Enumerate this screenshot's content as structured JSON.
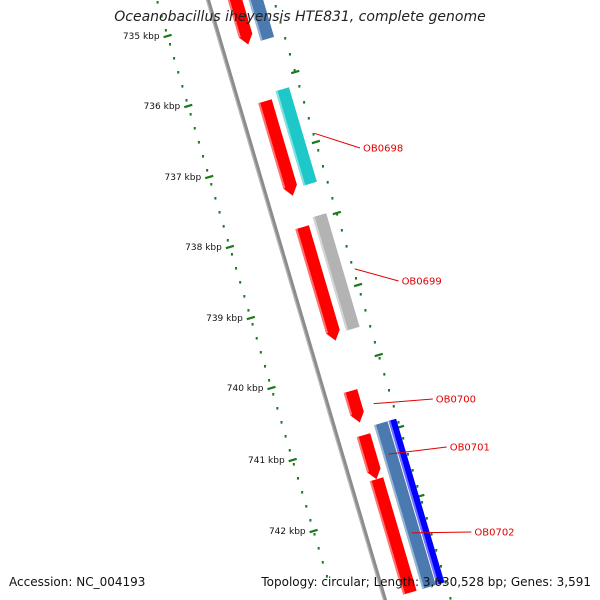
{
  "title": "Oceanobacillus iheyensis HTE831, complete genome",
  "footer": {
    "accession": "Accession: NC_004193",
    "stats": "Topology: circular; Length: 3,630,528 bp; Genes: 3,591"
  },
  "colors": {
    "tick_dots": "#1a7a1a",
    "backbone": "#8c8c8c",
    "forward_strand": "#ff0000",
    "label_color": "#e00000"
  },
  "ruler": {
    "ticks": [
      "735 kbp",
      "736 kbp",
      "737 kbp",
      "738 kbp",
      "739 kbp",
      "740 kbp",
      "741 kbp",
      "742 kbp"
    ]
  },
  "genes": [
    {
      "label": "",
      "strand": "+",
      "color": "#ff0000",
      "track": 1,
      "start": 0.0,
      "end": 0.13
    },
    {
      "label": "",
      "strand": "-",
      "color": "#4a7ab0",
      "track": 2,
      "start": 0.0,
      "end": 0.13
    },
    {
      "label": "",
      "strand": "+",
      "color": "#ff0000",
      "track": 1,
      "start": 0.22,
      "end": 0.37
    },
    {
      "label": "OB0698",
      "strand": "-",
      "color": "#1ec8c8",
      "track": 2,
      "start": 0.21,
      "end": 0.36
    },
    {
      "label": "",
      "strand": "+",
      "color": "#ff0000",
      "track": 1,
      "start": 0.42,
      "end": 0.6
    },
    {
      "label": "OB0699",
      "strand": "-",
      "color": "#b3b3b3",
      "track": 2,
      "start": 0.41,
      "end": 0.59
    },
    {
      "label": "OB0700",
      "strand": "+",
      "color": "#ff0000",
      "track": 1,
      "start": 0.68,
      "end": 0.73
    },
    {
      "label": "OB0701",
      "strand": "+",
      "color": "#ff0000",
      "track": 1,
      "start": 0.75,
      "end": 0.82
    },
    {
      "label": "",
      "strand": "-",
      "color": "#4a7ab0",
      "track": 2,
      "start": 0.74,
      "end": 1.0
    },
    {
      "label": "",
      "strand": "-",
      "color": "#0000ff",
      "track": 3,
      "start": 0.74,
      "end": 1.0
    },
    {
      "label": "OB0702",
      "strand": "+",
      "color": "#ff0000",
      "track": 1,
      "start": 0.82,
      "end": 1.0
    }
  ]
}
